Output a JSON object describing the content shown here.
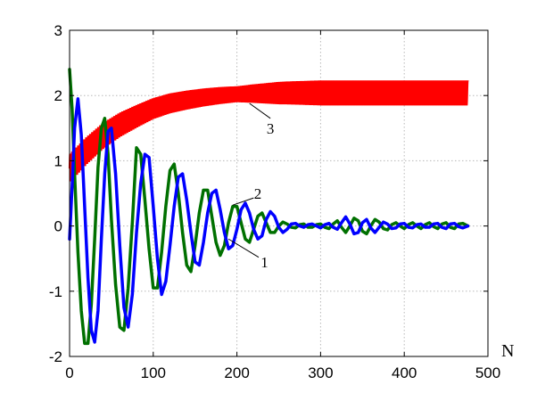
{
  "chart_data": {
    "type": "line",
    "title": "",
    "xlabel": "N",
    "ylabel": "",
    "xlim": [
      0,
      500
    ],
    "ylim": [
      -2,
      3
    ],
    "xticks": [
      0,
      100,
      200,
      300,
      400,
      500
    ],
    "yticks": [
      -2,
      -1,
      0,
      1,
      2,
      3
    ],
    "grid": true,
    "x_end": 476,
    "series": [
      {
        "color": "#0000ff",
        "stroke_width": 3.5,
        "points": [
          [
            0,
            -0.2
          ],
          [
            3,
            0.6
          ],
          [
            6,
            1.5
          ],
          [
            10,
            1.95
          ],
          [
            14,
            1.4
          ],
          [
            18,
            0.3
          ],
          [
            22,
            -0.8
          ],
          [
            26,
            -1.6
          ],
          [
            30,
            -1.78
          ],
          [
            34,
            -1.3
          ],
          [
            38,
            -0.2
          ],
          [
            42,
            0.8
          ],
          [
            46,
            1.45
          ],
          [
            50,
            1.5
          ],
          [
            55,
            0.8
          ],
          [
            60,
            -0.3
          ],
          [
            65,
            -1.25
          ],
          [
            70,
            -1.55
          ],
          [
            75,
            -1.05
          ],
          [
            80,
            -0.1
          ],
          [
            85,
            0.65
          ],
          [
            90,
            1.1
          ],
          [
            95,
            1.05
          ],
          [
            100,
            0.3
          ],
          [
            105,
            -0.5
          ],
          [
            110,
            -1.05
          ],
          [
            115,
            -0.85
          ],
          [
            120,
            -0.3
          ],
          [
            125,
            0.3
          ],
          [
            130,
            0.75
          ],
          [
            135,
            0.8
          ],
          [
            140,
            0.4
          ],
          [
            145,
            -0.1
          ],
          [
            150,
            -0.55
          ],
          [
            155,
            -0.6
          ],
          [
            160,
            -0.25
          ],
          [
            165,
            0.2
          ],
          [
            170,
            0.5
          ],
          [
            175,
            0.55
          ],
          [
            180,
            0.25
          ],
          [
            185,
            -0.1
          ],
          [
            190,
            -0.35
          ],
          [
            195,
            -0.3
          ],
          [
            200,
            -0.05
          ],
          [
            205,
            0.25
          ],
          [
            210,
            0.35
          ],
          [
            215,
            0.2
          ],
          [
            220,
            -0.05
          ],
          [
            225,
            -0.2
          ],
          [
            230,
            -0.15
          ],
          [
            235,
            0.1
          ],
          [
            240,
            0.22
          ],
          [
            245,
            0.15
          ],
          [
            250,
            -0.02
          ],
          [
            255,
            -0.1
          ],
          [
            260,
            -0.05
          ],
          [
            265,
            0.03
          ],
          [
            270,
            0.04
          ],
          [
            275,
            0.0
          ],
          [
            280,
            -0.02
          ],
          [
            285,
            0.02
          ],
          [
            290,
            0.03
          ],
          [
            295,
            0.0
          ],
          [
            300,
            -0.03
          ],
          [
            305,
            0.02
          ],
          [
            310,
            0.04
          ],
          [
            315,
            -0.02
          ],
          [
            320,
            -0.05
          ],
          [
            325,
            0.05
          ],
          [
            330,
            0.14
          ],
          [
            335,
            0.03
          ],
          [
            340,
            -0.12
          ],
          [
            345,
            -0.1
          ],
          [
            350,
            0.05
          ],
          [
            355,
            0.1
          ],
          [
            360,
            -0.03
          ],
          [
            365,
            -0.1
          ],
          [
            370,
            -0.02
          ],
          [
            375,
            0.06
          ],
          [
            380,
            0.03
          ],
          [
            385,
            -0.04
          ],
          [
            390,
            -0.03
          ],
          [
            395,
            0.03
          ],
          [
            400,
            0.04
          ],
          [
            405,
            -0.02
          ],
          [
            410,
            -0.03
          ],
          [
            415,
            0.02
          ],
          [
            420,
            0.03
          ],
          [
            425,
            -0.02
          ],
          [
            430,
            -0.02
          ],
          [
            435,
            0.03
          ],
          [
            440,
            0.04
          ],
          [
            445,
            -0.02
          ],
          [
            450,
            -0.04
          ],
          [
            455,
            0.03
          ],
          [
            460,
            0.04
          ],
          [
            465,
            -0.01
          ],
          [
            470,
            -0.03
          ],
          [
            476,
            0.0
          ]
        ]
      },
      {
        "color": "#007000",
        "stroke_width": 3.5,
        "points": [
          [
            0,
            2.4
          ],
          [
            3,
            1.8
          ],
          [
            6,
            0.8
          ],
          [
            10,
            -0.4
          ],
          [
            14,
            -1.3
          ],
          [
            18,
            -1.8
          ],
          [
            22,
            -1.8
          ],
          [
            26,
            -1.2
          ],
          [
            30,
            -0.2
          ],
          [
            34,
            0.9
          ],
          [
            38,
            1.5
          ],
          [
            42,
            1.65
          ],
          [
            46,
            1.1
          ],
          [
            50,
            0.1
          ],
          [
            55,
            -0.9
          ],
          [
            60,
            -1.55
          ],
          [
            65,
            -1.6
          ],
          [
            70,
            -0.95
          ],
          [
            75,
            0.05
          ],
          [
            80,
            1.2
          ],
          [
            85,
            1.1
          ],
          [
            90,
            0.4
          ],
          [
            95,
            -0.35
          ],
          [
            100,
            -0.95
          ],
          [
            105,
            -0.95
          ],
          [
            110,
            -0.4
          ],
          [
            115,
            0.3
          ],
          [
            120,
            0.85
          ],
          [
            125,
            0.95
          ],
          [
            130,
            0.5
          ],
          [
            135,
            -0.1
          ],
          [
            140,
            -0.6
          ],
          [
            145,
            -0.7
          ],
          [
            150,
            -0.3
          ],
          [
            155,
            0.2
          ],
          [
            160,
            0.55
          ],
          [
            165,
            0.55
          ],
          [
            170,
            0.15
          ],
          [
            175,
            -0.25
          ],
          [
            180,
            -0.45
          ],
          [
            185,
            -0.3
          ],
          [
            190,
            0.05
          ],
          [
            195,
            0.3
          ],
          [
            200,
            0.3
          ],
          [
            205,
            0.05
          ],
          [
            210,
            -0.2
          ],
          [
            215,
            -0.25
          ],
          [
            220,
            -0.05
          ],
          [
            225,
            0.15
          ],
          [
            230,
            0.2
          ],
          [
            235,
            0.05
          ],
          [
            240,
            -0.1
          ],
          [
            245,
            -0.1
          ],
          [
            250,
            0.0
          ],
          [
            255,
            0.06
          ],
          [
            260,
            0.03
          ],
          [
            265,
            -0.02
          ],
          [
            270,
            -0.03
          ],
          [
            275,
            0.02
          ],
          [
            280,
            0.03
          ],
          [
            285,
            -0.02
          ],
          [
            290,
            -0.02
          ],
          [
            295,
            0.02
          ],
          [
            300,
            0.03
          ],
          [
            305,
            -0.02
          ],
          [
            310,
            -0.04
          ],
          [
            315,
            0.03
          ],
          [
            320,
            0.08
          ],
          [
            325,
            -0.02
          ],
          [
            330,
            -0.1
          ],
          [
            335,
            0.0
          ],
          [
            340,
            0.12
          ],
          [
            345,
            0.08
          ],
          [
            350,
            -0.08
          ],
          [
            355,
            -0.12
          ],
          [
            360,
            0.0
          ],
          [
            365,
            0.1
          ],
          [
            370,
            0.06
          ],
          [
            375,
            -0.04
          ],
          [
            380,
            -0.06
          ],
          [
            385,
            0.02
          ],
          [
            390,
            0.05
          ],
          [
            395,
            0.0
          ],
          [
            400,
            -0.04
          ],
          [
            405,
            0.02
          ],
          [
            410,
            0.05
          ],
          [
            415,
            0.0
          ],
          [
            420,
            -0.04
          ],
          [
            425,
            0.02
          ],
          [
            430,
            0.05
          ],
          [
            435,
            -0.01
          ],
          [
            440,
            -0.04
          ],
          [
            445,
            0.03
          ],
          [
            450,
            0.05
          ],
          [
            455,
            -0.02
          ],
          [
            460,
            -0.04
          ],
          [
            465,
            0.03
          ],
          [
            470,
            0.04
          ],
          [
            476,
            0.0
          ]
        ]
      }
    ],
    "band": {
      "color": "#ff0000",
      "stroke_width": 2.2,
      "osc_period": 2.4,
      "envelope": [
        [
          0,
          0.88
        ],
        [
          20,
          1.15
        ],
        [
          40,
          1.38
        ],
        [
          60,
          1.55
        ],
        [
          80,
          1.68
        ],
        [
          100,
          1.8
        ],
        [
          120,
          1.88
        ],
        [
          140,
          1.93
        ],
        [
          160,
          1.97
        ],
        [
          180,
          2.0
        ],
        [
          200,
          2.02
        ],
        [
          220,
          2.03
        ],
        [
          260,
          2.04
        ],
        [
          300,
          2.04
        ],
        [
          400,
          2.04
        ],
        [
          476,
          2.04
        ]
      ],
      "amplitude": [
        [
          0,
          0.22
        ],
        [
          40,
          0.2
        ],
        [
          100,
          0.16
        ],
        [
          200,
          0.12
        ],
        [
          250,
          0.17
        ],
        [
          300,
          0.19
        ],
        [
          476,
          0.19
        ]
      ]
    },
    "annotations": [
      {
        "text": "1",
        "x": 233,
        "y": -0.55,
        "from": [
          190,
          -0.2
        ],
        "to": [
          226,
          -0.48
        ]
      },
      {
        "text": "2",
        "x": 225,
        "y": 0.5,
        "from": [
          195,
          0.32
        ],
        "to": [
          220,
          0.43
        ]
      },
      {
        "text": "3",
        "x": 240,
        "y": 1.5,
        "from": [
          215,
          1.88
        ],
        "to": [
          240,
          1.65
        ]
      }
    ]
  }
}
